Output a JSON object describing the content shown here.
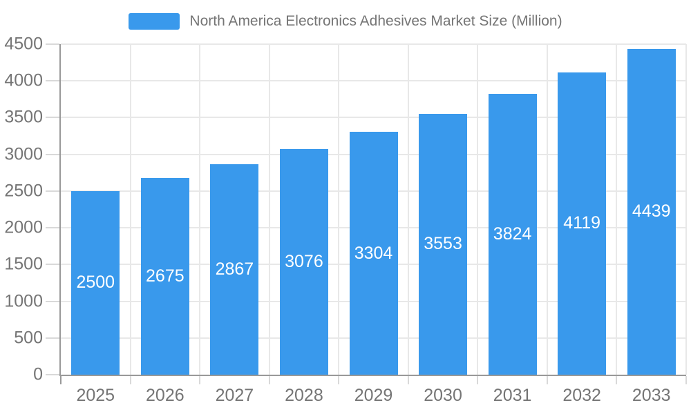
{
  "legend": {
    "label": "North America Electronics Adhesives Market Size (Million)"
  },
  "colors": {
    "bar": "#3999ec",
    "axis_line": "#999999",
    "grid_line": "#e8e8e8",
    "tick_line": "#d9d9d9",
    "axis_label": "#757575",
    "value_label": "#ffffff",
    "background": "#ffffff"
  },
  "chart_data": {
    "type": "bar",
    "title": "North America Electronics Adhesives Market Size (Million)",
    "categories": [
      "2025",
      "2026",
      "2027",
      "2028",
      "2029",
      "2030",
      "2031",
      "2032",
      "2033"
    ],
    "values": [
      2500,
      2675,
      2867,
      3076,
      3304,
      3553,
      3824,
      4119,
      4439
    ],
    "xlabel": "",
    "ylabel": "",
    "ylim": [
      0,
      4500
    ],
    "yticks": [
      0,
      500,
      1000,
      1500,
      2000,
      2500,
      3000,
      3500,
      4000,
      4500
    ],
    "grid": true,
    "legend_position": "top",
    "value_labels": "inside-center"
  }
}
